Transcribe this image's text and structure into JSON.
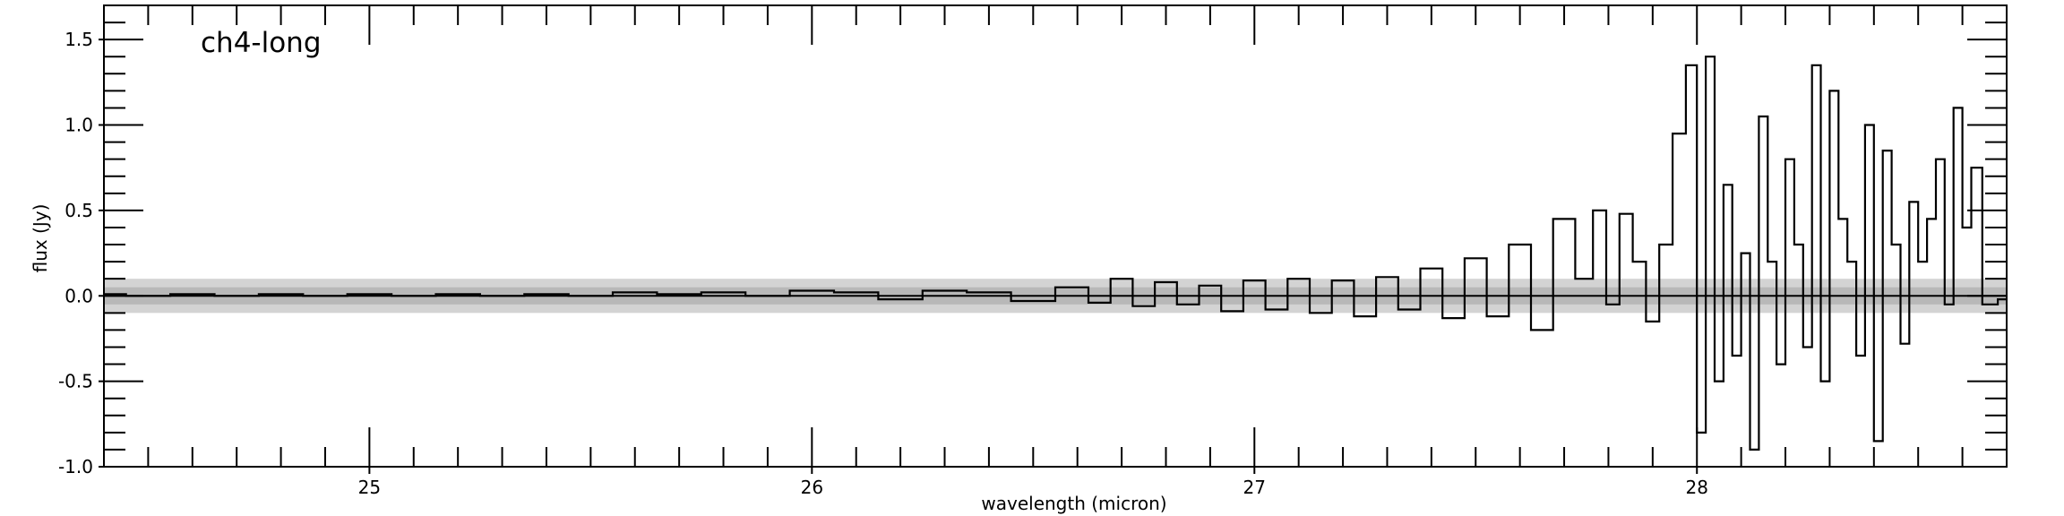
{
  "chart_data": {
    "type": "line",
    "title": "ch4-long",
    "xlabel": "wavelength (micron)",
    "ylabel": "flux (Jy)",
    "xlim": [
      24.4,
      28.7
    ],
    "ylim": [
      -1.0,
      1.7
    ],
    "x_ticks": [
      25,
      26,
      27,
      28
    ],
    "x_tick_labels": [
      "25",
      "26",
      "27",
      "28"
    ],
    "y_ticks": [
      -1.0,
      -0.5,
      0.0,
      0.5,
      1.0,
      1.5
    ],
    "y_tick_labels": [
      "-1.0",
      "-0.5",
      "0.0",
      "0.5",
      "1.0",
      "1.5"
    ],
    "x_minor_step": 0.1,
    "y_minor_step": 0.1,
    "grid": false,
    "zero_line": true,
    "uncertainty_bands": [
      {
        "low": -0.1,
        "high": 0.1,
        "color": "#d3d3d3"
      },
      {
        "low": -0.05,
        "high": 0.05,
        "color": "#b8b8b8"
      }
    ],
    "line_color": "#000000",
    "series": [
      {
        "drawstyle": "steps-mid",
        "x": [
          24.4,
          24.5,
          24.6,
          24.7,
          24.8,
          24.9,
          25.0,
          25.1,
          25.2,
          25.3,
          25.4,
          25.5,
          25.6,
          25.7,
          25.8,
          25.9,
          26.0,
          26.1,
          26.2,
          26.3,
          26.4,
          26.5,
          26.6,
          26.65,
          26.7,
          26.75,
          26.8,
          26.85,
          26.9,
          26.95,
          27.0,
          27.05,
          27.1,
          27.15,
          27.2,
          27.25,
          27.3,
          27.35,
          27.4,
          27.45,
          27.5,
          27.55,
          27.6,
          27.65,
          27.7,
          27.75,
          27.78,
          27.81,
          27.84,
          27.87,
          27.9,
          27.93,
          27.96,
          27.99,
          28.01,
          28.03,
          28.05,
          28.07,
          28.09,
          28.11,
          28.13,
          28.15,
          28.17,
          28.19,
          28.21,
          28.23,
          28.25,
          28.27,
          28.29,
          28.31,
          28.33,
          28.35,
          28.37,
          28.39,
          28.41,
          28.43,
          28.45,
          28.47,
          28.49,
          28.51,
          28.53,
          28.55,
          28.57,
          28.59,
          28.61,
          28.63,
          28.66,
          28.7
        ],
        "y": [
          0.01,
          0.0,
          0.01,
          0.0,
          0.01,
          0.0,
          0.01,
          0.0,
          0.01,
          0.0,
          0.01,
          0.0,
          0.02,
          0.01,
          0.02,
          0.0,
          0.03,
          0.02,
          -0.02,
          0.03,
          0.02,
          -0.03,
          0.05,
          -0.04,
          0.1,
          -0.06,
          0.08,
          -0.05,
          0.06,
          -0.09,
          0.09,
          -0.08,
          0.1,
          -0.1,
          0.09,
          -0.12,
          0.11,
          -0.08,
          0.16,
          -0.13,
          0.22,
          -0.12,
          0.3,
          -0.2,
          0.45,
          0.1,
          0.5,
          -0.05,
          0.48,
          0.2,
          -0.15,
          0.3,
          0.95,
          1.35,
          -0.8,
          1.4,
          -0.5,
          0.65,
          -0.35,
          0.25,
          -0.9,
          1.05,
          0.2,
          -0.4,
          0.8,
          0.3,
          -0.3,
          1.35,
          -0.5,
          1.2,
          0.45,
          0.2,
          -0.35,
          1.0,
          -0.85,
          0.85,
          0.3,
          -0.28,
          0.55,
          0.2,
          0.45,
          0.8,
          -0.05,
          1.1,
          0.4,
          0.75,
          -0.05,
          -0.02
        ]
      }
    ]
  }
}
